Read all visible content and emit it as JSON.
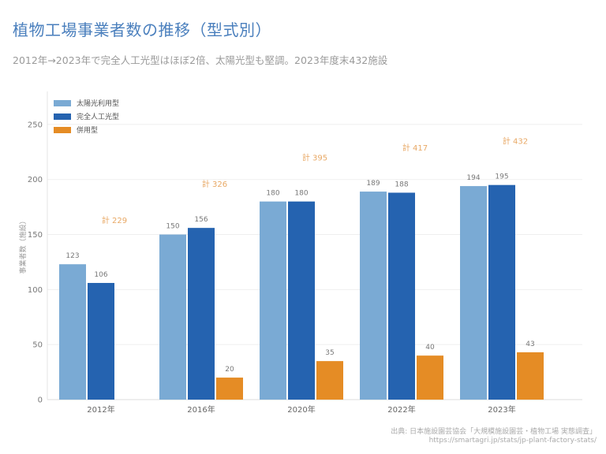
{
  "header": {
    "title": "植物工場事業者数の推移（型式別）",
    "subtitle": "2012年→2023年で完全人工光型はほぼ2倍、太陽光型も堅調。2023年度末432施設"
  },
  "footer": {
    "source": "出典: 日本施設園芸協会「大規模施設園芸・植物工場 実態調査」",
    "url": "https://smartagri.jp/stats/jp-plant-factory-stats/"
  },
  "chart_data": {
    "type": "bar",
    "categories": [
      "2012年",
      "2016年",
      "2020年",
      "2022年",
      "2023年"
    ],
    "series": [
      {
        "name": "太陽光利用型",
        "color": "#7aaad4",
        "values": [
          123,
          150,
          180,
          189,
          194
        ]
      },
      {
        "name": "完全人工光型",
        "color": "#2563b0",
        "values": [
          106,
          156,
          180,
          188,
          195
        ]
      },
      {
        "name": "併用型",
        "color": "#e58c25",
        "values": [
          null,
          20,
          35,
          40,
          43
        ]
      }
    ],
    "totals": [
      "計 229",
      "計 326",
      "計 395",
      "計 417",
      "計 432"
    ],
    "total_values": [
      229,
      326,
      395,
      417,
      432
    ],
    "total_color": "#e8a865",
    "ylabel": "事業者数（施設）",
    "ylim": [
      0,
      280
    ],
    "yticks": [
      0,
      50,
      100,
      150,
      200,
      250
    ],
    "grid": true,
    "legend_position": "top-left"
  }
}
